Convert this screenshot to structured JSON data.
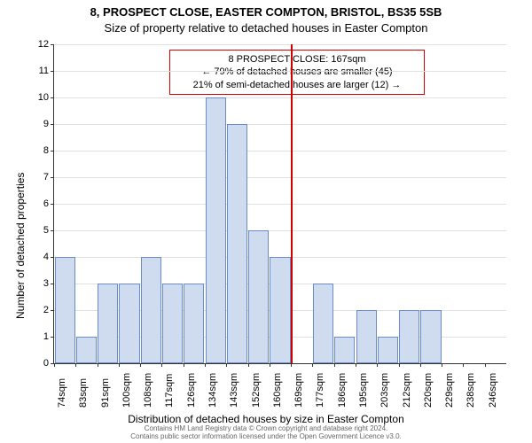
{
  "title_main": "8, PROSPECT CLOSE, EASTER COMPTON, BRISTOL, BS35 5SB",
  "title_sub": "Size of property relative to detached houses in Easter Compton",
  "ylabel": "Number of detached properties",
  "xlabel": "Distribution of detached houses by size in Easter Compton",
  "footer_line1": "Contains HM Land Registry data © Crown copyright and database right 2024.",
  "footer_line2": "Contains public sector information licensed under the Open Government Licence v3.0.",
  "chart": {
    "type": "histogram",
    "bar_color": "#cfdcf0",
    "bar_border": "#6a8bc4",
    "grid_color": "#e0e0e0",
    "axis_color": "#333333",
    "ref_line_color": "#d00000",
    "ref_line_x_index": 11,
    "ylim": [
      0,
      12
    ],
    "ytick_step": 1,
    "x_labels": [
      "74sqm",
      "83sqm",
      "91sqm",
      "100sqm",
      "108sqm",
      "117sqm",
      "126sqm",
      "134sqm",
      "143sqm",
      "152sqm",
      "160sqm",
      "169sqm",
      "177sqm",
      "186sqm",
      "195sqm",
      "203sqm",
      "212sqm",
      "220sqm",
      "229sqm",
      "238sqm",
      "246sqm"
    ],
    "values": [
      4,
      1,
      3,
      3,
      4,
      3,
      3,
      10,
      9,
      5,
      4,
      0,
      3,
      1,
      2,
      1,
      2,
      2,
      0,
      0,
      0
    ],
    "bar_count_visible": 21
  },
  "annotation": {
    "line1": "8 PROSPECT CLOSE: 167sqm",
    "line2": "← 79% of detached houses are smaller (45)",
    "line3": "21% of semi-detached houses are larger (12) →"
  }
}
